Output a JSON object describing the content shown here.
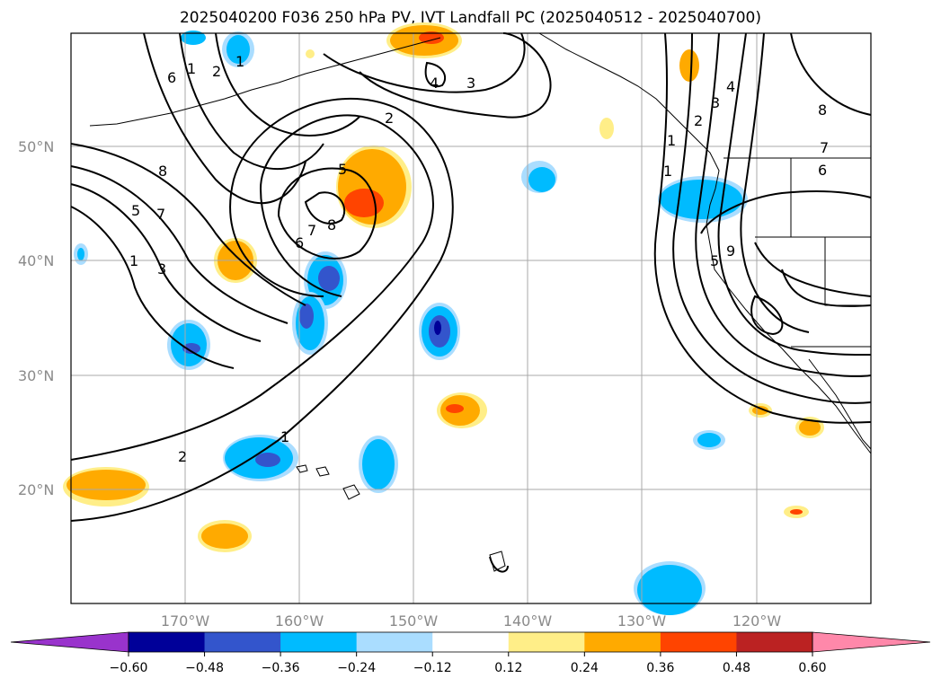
{
  "title": "2025040200 F036 250 hPa PV, IVT Landfall PC (2025040512 - 2025040700)",
  "map": {
    "lat_labels": [
      "50°N",
      "40°N",
      "30°N",
      "20°N"
    ],
    "lon_labels": [
      "170°W",
      "160°W",
      "150°W",
      "140°W",
      "130°W",
      "120°W"
    ],
    "contour_labels": [
      "6",
      "1",
      "2",
      "1",
      "4",
      "3",
      "2",
      "8",
      "5",
      "7",
      "1",
      "3",
      "5",
      "8",
      "7",
      "6",
      "2",
      "1",
      "1",
      "4",
      "3",
      "2",
      "1",
      "8",
      "7",
      "6",
      "9",
      "5"
    ],
    "colorbar": {
      "ticks": [
        "−0.60",
        "−0.48",
        "−0.36",
        "−0.24",
        "−0.12",
        "0.12",
        "0.24",
        "0.36",
        "0.48",
        "0.60"
      ],
      "colors": [
        "#9933cc",
        "#000099",
        "#3355cc",
        "#00bbff",
        "#aaddff",
        "#ffffff",
        "#ffee88",
        "#ffaa00",
        "#ff4400",
        "#bb2222",
        "#ff88aa"
      ]
    }
  }
}
